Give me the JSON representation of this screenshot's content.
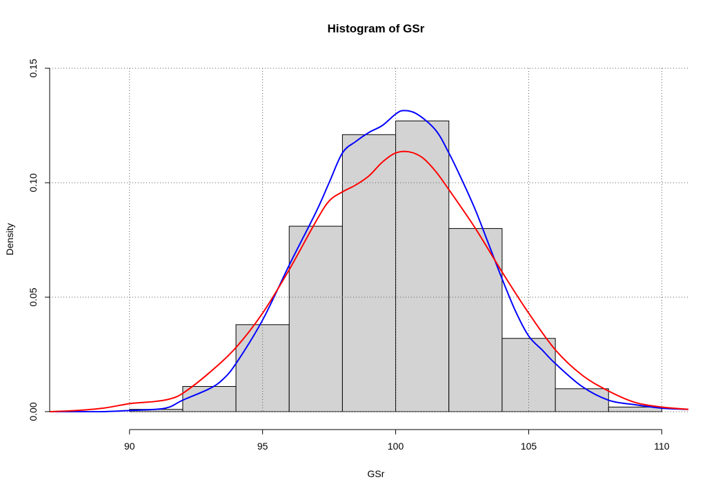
{
  "chart_data": {
    "type": "histogram",
    "title": "Histogram of GSr",
    "xlabel": "GSr",
    "ylabel": "Density",
    "xlim": [
      87,
      111
    ],
    "ylim": [
      0,
      0.15
    ],
    "x_ticks": [
      90,
      95,
      100,
      105,
      110
    ],
    "x_tick_labels": [
      "90",
      "95",
      "100",
      "105",
      "110"
    ],
    "y_ticks": [
      0,
      0.05,
      0.1,
      0.15
    ],
    "y_tick_labels": [
      "0.00",
      "0.05",
      "0.10",
      "0.15"
    ],
    "grid": true,
    "bar_color": "#d3d3d3",
    "bins": [
      {
        "start": 90,
        "end": 92,
        "density": 0.001
      },
      {
        "start": 92,
        "end": 94,
        "density": 0.011
      },
      {
        "start": 94,
        "end": 96,
        "density": 0.038
      },
      {
        "start": 96,
        "end": 98,
        "density": 0.081
      },
      {
        "start": 98,
        "end": 100,
        "density": 0.121
      },
      {
        "start": 100,
        "end": 102,
        "density": 0.127
      },
      {
        "start": 102,
        "end": 104,
        "density": 0.08
      },
      {
        "start": 104,
        "end": 106,
        "density": 0.032
      },
      {
        "start": 106,
        "end": 108,
        "density": 0.01
      },
      {
        "start": 108,
        "end": 110,
        "density": 0.002
      }
    ],
    "series": [
      {
        "color": "#0000ff",
        "x": [
          87,
          88,
          89,
          90,
          91,
          91.5,
          92,
          93,
          93.5,
          94,
          95,
          96,
          97,
          97.5,
          98,
          98.5,
          99,
          99.5,
          100,
          100.3,
          100.8,
          101.5,
          102,
          102.5,
          103,
          103.5,
          104,
          104.5,
          105,
          105.5,
          106,
          107,
          108,
          109,
          110,
          111
        ],
        "values": [
          0.0,
          0.0,
          0.0,
          0.0005,
          0.001,
          0.002,
          0.005,
          0.01,
          0.014,
          0.021,
          0.04,
          0.064,
          0.087,
          0.1,
          0.113,
          0.118,
          0.122,
          0.125,
          0.13,
          0.1315,
          0.13,
          0.123,
          0.113,
          0.101,
          0.088,
          0.073,
          0.058,
          0.044,
          0.033,
          0.027,
          0.021,
          0.011,
          0.005,
          0.003,
          0.0015,
          0.001
        ]
      },
      {
        "color": "#ff0000",
        "x": [
          87,
          88,
          89,
          90,
          90.5,
          91,
          91.5,
          92,
          93,
          94,
          95,
          96,
          97,
          97.5,
          98,
          98.5,
          99,
          99.5,
          100,
          100.5,
          101,
          101.5,
          102,
          103,
          104,
          105,
          106,
          107,
          108,
          109,
          110,
          111
        ],
        "values": [
          0.0,
          0.0005,
          0.0015,
          0.0035,
          0.004,
          0.0045,
          0.0055,
          0.008,
          0.017,
          0.028,
          0.043,
          0.062,
          0.083,
          0.092,
          0.096,
          0.099,
          0.103,
          0.109,
          0.113,
          0.1135,
          0.111,
          0.105,
          0.097,
          0.08,
          0.061,
          0.043,
          0.027,
          0.016,
          0.009,
          0.004,
          0.002,
          0.001
        ]
      }
    ]
  }
}
